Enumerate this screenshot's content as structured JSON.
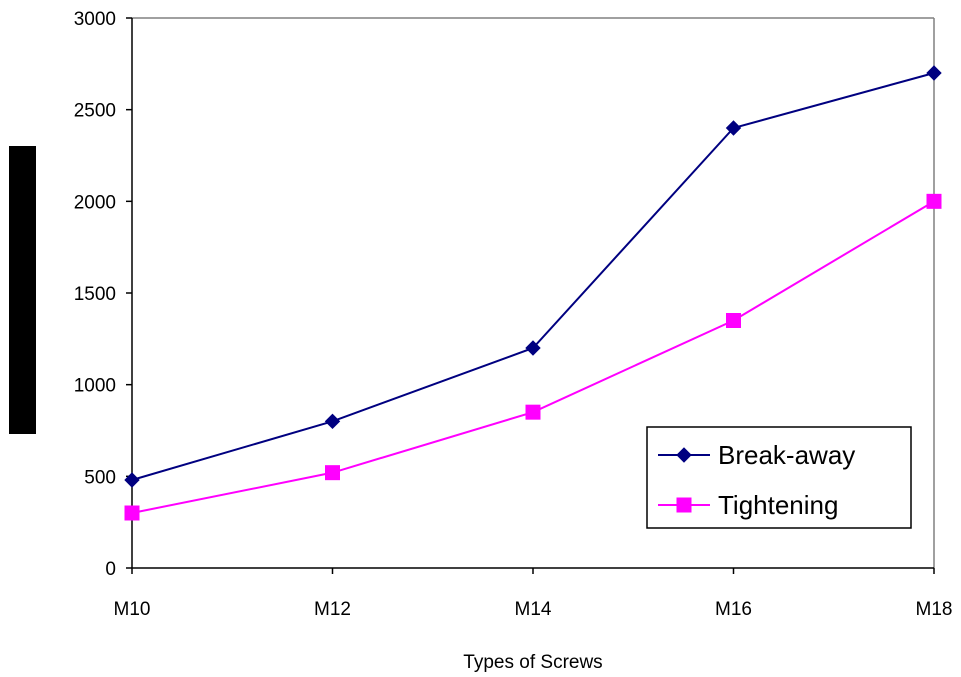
{
  "chart_data": {
    "type": "line",
    "title": "",
    "xlabel": "Types of Screws",
    "ylabel": "",
    "categories": [
      "M10",
      "M12",
      "M14",
      "M16",
      "M18"
    ],
    "ylim": [
      0,
      3000
    ],
    "yticks": [
      0,
      500,
      1000,
      1500,
      2000,
      2500,
      3000
    ],
    "grid": false,
    "legend_position": "bottom-right",
    "series": [
      {
        "name": "Break-away",
        "values": [
          480,
          800,
          1200,
          2400,
          2700
        ],
        "color": "#000080",
        "marker": "diamond"
      },
      {
        "name": "Tightening",
        "values": [
          300,
          520,
          850,
          1350,
          2000
        ],
        "color": "#FF00FF",
        "marker": "square"
      }
    ]
  }
}
